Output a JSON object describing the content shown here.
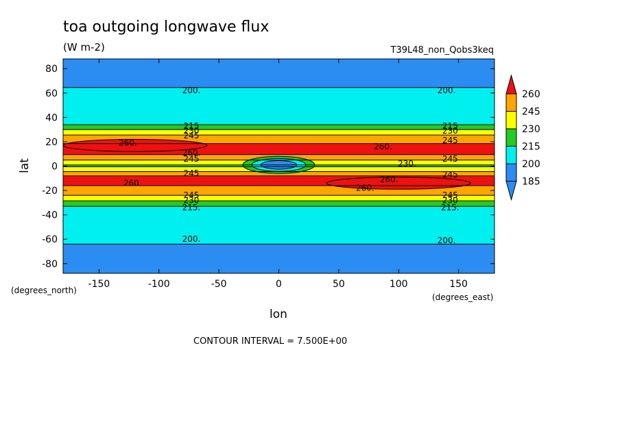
{
  "chart_data": {
    "type": "contour",
    "title": "toa outgoing longwave flux",
    "units": "(W m-2)",
    "experiment": "T39L48_non_Qobs3keq",
    "xlabel": "lon",
    "ylabel": "lat",
    "x_units": "(degrees_east)",
    "y_units": "(degrees_north)",
    "xlim": [
      -180,
      180
    ],
    "ylim": [
      -88,
      88
    ],
    "x_ticks": [
      -150,
      -100,
      -50,
      0,
      50,
      100,
      150
    ],
    "y_ticks": [
      -80,
      -60,
      -40,
      -20,
      0,
      20,
      40,
      60,
      80
    ],
    "contour_interval_text": "CONTOUR INTERVAL = 7.500E+00",
    "colorbar": {
      "levels": [
        185,
        200,
        215,
        230,
        245,
        260
      ],
      "colors": [
        "#2b8cf2",
        "#00f0f0",
        "#22cc22",
        "#ffff00",
        "#ffa500",
        "#ee1111"
      ]
    },
    "zonal_mean_profile": [
      {
        "lat": -88,
        "value": 190
      },
      {
        "lat": -72,
        "value": 193
      },
      {
        "lat": -64,
        "value": 200
      },
      {
        "lat": -50,
        "value": 205
      },
      {
        "lat": -40,
        "value": 208
      },
      {
        "lat": -34,
        "value": 213
      },
      {
        "lat": -31,
        "value": 221
      },
      {
        "lat": -28,
        "value": 232
      },
      {
        "lat": -25,
        "value": 243
      },
      {
        "lat": -20,
        "value": 254
      },
      {
        "lat": -14,
        "value": 263
      },
      {
        "lat": -9,
        "value": 262
      },
      {
        "lat": -6,
        "value": 250
      },
      {
        "lat": -3,
        "value": 238
      },
      {
        "lat": 0,
        "value": 228
      },
      {
        "lat": 3,
        "value": 238
      },
      {
        "lat": 6,
        "value": 251
      },
      {
        "lat": 10,
        "value": 262
      },
      {
        "lat": 16,
        "value": 263
      },
      {
        "lat": 22,
        "value": 254
      },
      {
        "lat": 26,
        "value": 243
      },
      {
        "lat": 29,
        "value": 232
      },
      {
        "lat": 32,
        "value": 221
      },
      {
        "lat": 34,
        "value": 213
      },
      {
        "lat": 40,
        "value": 208
      },
      {
        "lat": 52,
        "value": 205
      },
      {
        "lat": 64,
        "value": 200
      },
      {
        "lat": 74,
        "value": 193
      },
      {
        "lat": 88,
        "value": 190
      }
    ],
    "features": [
      {
        "type": "min",
        "lon": 0,
        "lat": 1,
        "value": 185,
        "radius_lon": 30,
        "radius_lat": 7
      },
      {
        "type": "max",
        "lon": -120,
        "lat": 17,
        "value": 262,
        "radius_lon": 60,
        "radius_lat": 5
      },
      {
        "type": "max",
        "lon": 100,
        "lat": -14,
        "value": 264,
        "radius_lon": 60,
        "radius_lat": 5
      }
    ],
    "contour_labels": [
      {
        "text": "200.",
        "lon": -73,
        "lat": 62
      },
      {
        "text": "200.",
        "lon": 140,
        "lat": 62
      },
      {
        "text": "200.",
        "lon": -73,
        "lat": -60
      },
      {
        "text": "200.",
        "lon": 140,
        "lat": -61
      },
      {
        "text": "215",
        "lon": -73,
        "lat": 33
      },
      {
        "text": "230",
        "lon": -73,
        "lat": 29
      },
      {
        "text": "245",
        "lon": -73,
        "lat": 25
      },
      {
        "text": "215",
        "lon": 143,
        "lat": 33
      },
      {
        "text": "230",
        "lon": 143,
        "lat": 29
      },
      {
        "text": "245",
        "lon": 143,
        "lat": 21
      },
      {
        "text": "260.",
        "lon": -126,
        "lat": 19
      },
      {
        "text": "260.",
        "lon": -73,
        "lat": 11
      },
      {
        "text": "245",
        "lon": -73,
        "lat": 6
      },
      {
        "text": "245",
        "lon": 143,
        "lat": 6
      },
      {
        "text": "260.",
        "lon": 87,
        "lat": 16
      },
      {
        "text": "230.",
        "lon": 107,
        "lat": 2
      },
      {
        "text": "245",
        "lon": -73,
        "lat": -6
      },
      {
        "text": "245",
        "lon": 143,
        "lat": -7
      },
      {
        "text": "260.",
        "lon": -122,
        "lat": -14
      },
      {
        "text": "260.",
        "lon": 72,
        "lat": -18
      },
      {
        "text": "260.",
        "lon": 92,
        "lat": -11
      },
      {
        "text": "245",
        "lon": -73,
        "lat": -24
      },
      {
        "text": "230",
        "lon": -73,
        "lat": -28
      },
      {
        "text": "215.",
        "lon": -73,
        "lat": -34
      },
      {
        "text": "245",
        "lon": 143,
        "lat": -24
      },
      {
        "text": "230",
        "lon": 143,
        "lat": -28
      },
      {
        "text": "215.",
        "lon": 143,
        "lat": -34
      }
    ]
  }
}
